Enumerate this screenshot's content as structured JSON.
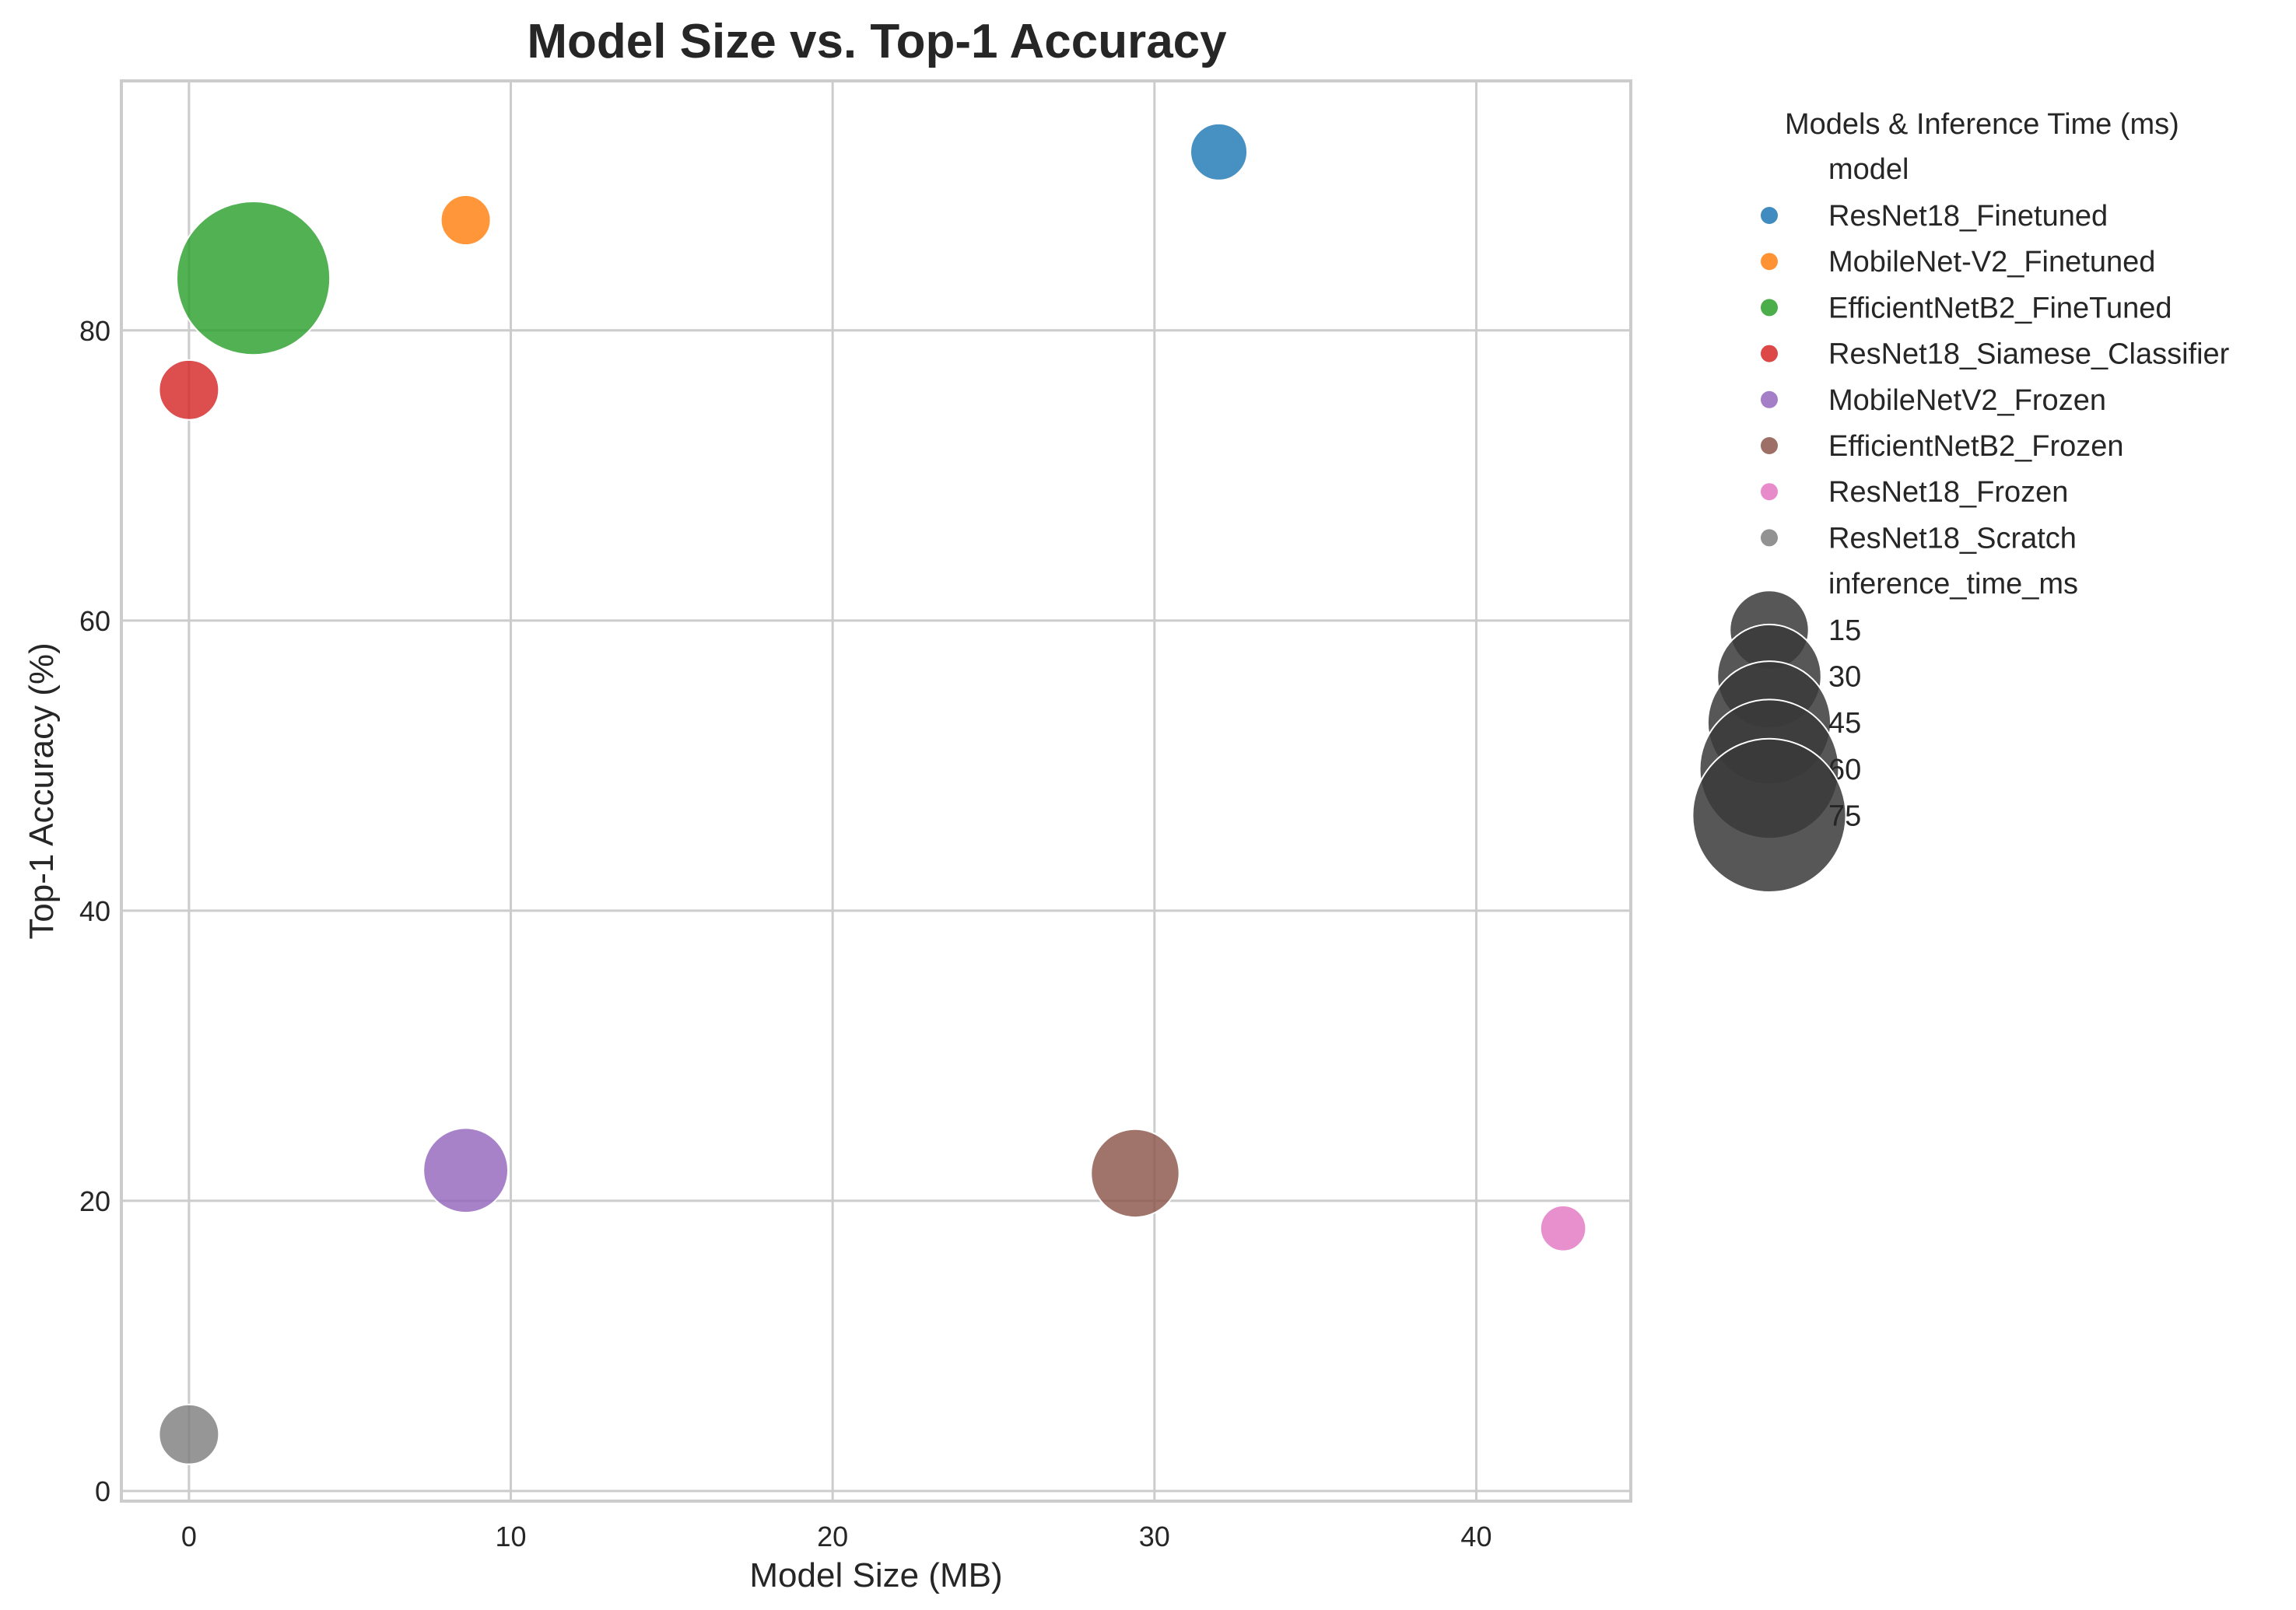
{
  "chart_data": {
    "type": "scatter",
    "title": "Model Size vs. Top-1 Accuracy",
    "xlabel": "Model Size (MB)",
    "ylabel": "Top-1 Accuracy (%)",
    "xlim": [
      -2.1,
      44.8
    ],
    "ylim": [
      -0.7,
      97.2
    ],
    "xticks": [
      0,
      10,
      20,
      30,
      40
    ],
    "yticks": [
      0,
      20,
      40,
      60,
      80
    ],
    "grid": true,
    "legend_position": "outside-right",
    "series": [
      {
        "name": "ResNet18_Finetuned",
        "color": "#1f77b4",
        "x": 32.0,
        "y": 92.3,
        "inference_time_ms": 6
      },
      {
        "name": "MobileNet-V2_Finetuned",
        "color": "#ff7f0e",
        "x": 8.6,
        "y": 87.6,
        "inference_time_ms": 4
      },
      {
        "name": "EfficientNetB2_FineTuned",
        "color": "#2ca02c",
        "x": 2.0,
        "y": 83.6,
        "inference_time_ms": 75
      },
      {
        "name": "ResNet18_Siamese_Classifier",
        "color": "#d62728",
        "x": 0.0,
        "y": 75.9,
        "inference_time_ms": 7
      },
      {
        "name": "MobileNetV2_Frozen",
        "color": "#9467bd",
        "x": 8.6,
        "y": 22.1,
        "inference_time_ms": 18
      },
      {
        "name": "EfficientNetB2_Frozen",
        "color": "#8c564b",
        "x": 29.4,
        "y": 21.9,
        "inference_time_ms": 20
      },
      {
        "name": "ResNet18_Frozen",
        "color": "#e377c2",
        "x": 42.7,
        "y": 18.1,
        "inference_time_ms": 3
      },
      {
        "name": "ResNet18_Scratch",
        "color": "#7f7f7f",
        "x": 0.0,
        "y": 3.9,
        "inference_time_ms": 7
      }
    ],
    "legend": {
      "title": "Models & Inference Time (ms)",
      "hue_title": "model",
      "size_title": "inference_time_ms",
      "size_entries": [
        15,
        30,
        45,
        60,
        75
      ],
      "size_color": "#3a3a3a"
    }
  }
}
